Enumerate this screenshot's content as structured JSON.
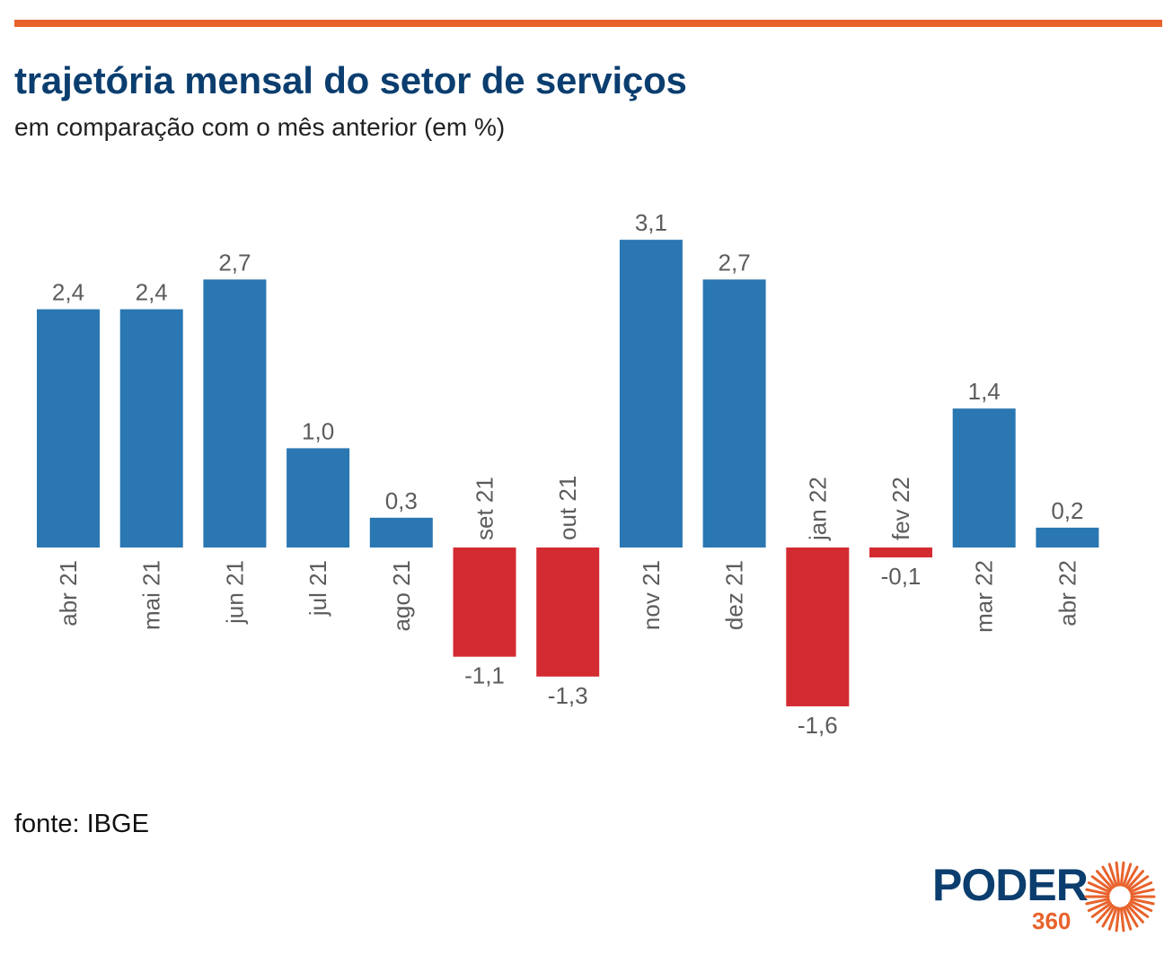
{
  "header": {
    "title": "trajetória mensal do setor de serviços",
    "subtitle": "em comparação com o mês anterior (em %)"
  },
  "footer": {
    "source": "fonte: IBGE"
  },
  "logo": {
    "word": "PODER",
    "number": "360"
  },
  "colors": {
    "positive": "#2a77b2",
    "negative": "#d42a31",
    "accent": "#e8622c",
    "title": "#0b3e6f",
    "label": "#5c5c5c"
  },
  "chart_data": {
    "type": "bar",
    "title": "trajetória mensal do setor de serviços",
    "subtitle": "em comparação com o mês anterior (em %)",
    "categories": [
      "abr 21",
      "mai 21",
      "jun 21",
      "jul 21",
      "ago 21",
      "set 21",
      "out 21",
      "nov 21",
      "dez 21",
      "jan 22",
      "fev 22",
      "mar 22",
      "abr 22"
    ],
    "values": [
      2.4,
      2.4,
      2.7,
      1.0,
      0.3,
      -1.1,
      -1.3,
      3.1,
      2.7,
      -1.6,
      -0.1,
      1.4,
      0.2
    ],
    "value_labels": [
      "2,4",
      "2,4",
      "2,7",
      "1,0",
      "0,3",
      "-1,1",
      "-1,3",
      "3,1",
      "2,7",
      "-1,6",
      "-0,1",
      "1,4",
      "0,2"
    ],
    "ylim": [
      -1.6,
      3.1
    ],
    "grid": false,
    "legend": "none"
  }
}
